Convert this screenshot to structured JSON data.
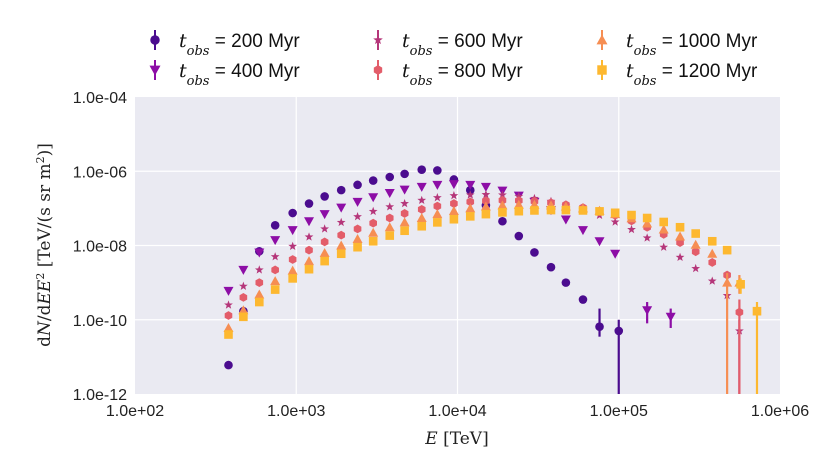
{
  "chart_data": {
    "type": "scatter",
    "title": "",
    "xlabel": "E [TeV]",
    "ylabel": "dN/dEE² [TeV/(s sr m²)]",
    "xscale": "log",
    "yscale": "log",
    "xlim": [
      100,
      1000000
    ],
    "ylim": [
      1e-12,
      0.0001
    ],
    "x_ticks": [
      100,
      1000,
      10000,
      100000,
      1000000
    ],
    "x_tick_labels": [
      "1.0e+02",
      "1.0e+03",
      "1.0e+04",
      "1.0e+05",
      "1.0e+06"
    ],
    "y_ticks": [
      1e-12,
      1e-10,
      1e-08,
      1e-06,
      0.0001
    ],
    "y_tick_labels": [
      "1.0e-12",
      "1.0e-10",
      "1.0e-08",
      "1.0e-06",
      "1.0e-04"
    ],
    "grid": true,
    "legend_position": "top",
    "series": [
      {
        "name": "t_obs = 200 Myr",
        "legend_label": "200 Myr",
        "marker": "circle",
        "color": "#4b0c8f",
        "points": [
          {
            "x": 380,
            "y": 6e-12
          },
          {
            "x": 470,
            "y": 1.7e-10
          },
          {
            "x": 590,
            "y": 7e-09
          },
          {
            "x": 740,
            "y": 3.5e-08
          },
          {
            "x": 950,
            "y": 7.5e-08
          },
          {
            "x": 1200,
            "y": 1.35e-07
          },
          {
            "x": 1500,
            "y": 2.1e-07
          },
          {
            "x": 1900,
            "y": 3.1e-07
          },
          {
            "x": 2400,
            "y": 4.3e-07
          },
          {
            "x": 3000,
            "y": 5.6e-07
          },
          {
            "x": 3800,
            "y": 7e-07
          },
          {
            "x": 4700,
            "y": 8.5e-07
          },
          {
            "x": 6000,
            "y": 1.1e-06
          },
          {
            "x": 7500,
            "y": 1.05e-06
          },
          {
            "x": 9500,
            "y": 6e-07
          },
          {
            "x": 12000,
            "y": 3.1e-07
          },
          {
            "x": 15000,
            "y": 1.2e-07
          },
          {
            "x": 19000,
            "y": 4.5e-08
          },
          {
            "x": 24000,
            "y": 1.8e-08
          },
          {
            "x": 30000,
            "y": 6.5e-09
          },
          {
            "x": 38000,
            "y": 2.6e-09
          },
          {
            "x": 47000,
            "y": 1e-09
          },
          {
            "x": 60000,
            "y": 3.5e-10
          },
          {
            "x": 76000,
            "y": 6.5e-11,
            "yerr_low": 3.5e-11,
            "yerr_high": 2e-10
          },
          {
            "x": 100000,
            "y": 5e-11,
            "yerr_low": 1e-12,
            "yerr_high": 1e-10
          }
        ]
      },
      {
        "name": "t_obs = 400 Myr",
        "legend_label": "400 Myr",
        "marker": "triangle-down",
        "color": "#8d0ea6",
        "points": [
          {
            "x": 380,
            "y": 6e-10
          },
          {
            "x": 470,
            "y": 2.2e-09
          },
          {
            "x": 590,
            "y": 6.5e-09
          },
          {
            "x": 740,
            "y": 1.4e-08
          },
          {
            "x": 950,
            "y": 2.6e-08
          },
          {
            "x": 1200,
            "y": 4.5e-08
          },
          {
            "x": 1500,
            "y": 7e-08
          },
          {
            "x": 1900,
            "y": 1.05e-07
          },
          {
            "x": 2400,
            "y": 1.5e-07
          },
          {
            "x": 3000,
            "y": 2e-07
          },
          {
            "x": 3800,
            "y": 2.6e-07
          },
          {
            "x": 4700,
            "y": 3.2e-07
          },
          {
            "x": 6000,
            "y": 3.8e-07
          },
          {
            "x": 7500,
            "y": 4.3e-07
          },
          {
            "x": 9500,
            "y": 4.5e-07
          },
          {
            "x": 12000,
            "y": 4.3e-07
          },
          {
            "x": 15000,
            "y": 3.8e-07
          },
          {
            "x": 19000,
            "y": 3e-07
          },
          {
            "x": 24000,
            "y": 2.2e-07
          },
          {
            "x": 30000,
            "y": 1.5e-07
          },
          {
            "x": 38000,
            "y": 9e-08
          },
          {
            "x": 47000,
            "y": 5e-08
          },
          {
            "x": 60000,
            "y": 2.6e-08
          },
          {
            "x": 76000,
            "y": 1.3e-08
          },
          {
            "x": 95000,
            "y": 6e-09
          },
          {
            "x": 150000,
            "y": 1.8e-10,
            "yerr_low": 8e-11,
            "yerr_high": 3e-10
          },
          {
            "x": 210000,
            "y": 1.2e-10,
            "yerr_low": 6e-11,
            "yerr_high": 2e-10
          }
        ]
      },
      {
        "name": "t_obs = 600 Myr",
        "legend_label": "600 Myr",
        "marker": "star",
        "color": "#b5367a",
        "points": [
          {
            "x": 380,
            "y": 2.5e-10
          },
          {
            "x": 470,
            "y": 8e-10
          },
          {
            "x": 590,
            "y": 2.2e-09
          },
          {
            "x": 740,
            "y": 5e-09
          },
          {
            "x": 950,
            "y": 9.5e-09
          },
          {
            "x": 1200,
            "y": 1.7e-08
          },
          {
            "x": 1500,
            "y": 2.8e-08
          },
          {
            "x": 1900,
            "y": 4.2e-08
          },
          {
            "x": 2400,
            "y": 6e-08
          },
          {
            "x": 3000,
            "y": 8.3e-08
          },
          {
            "x": 3800,
            "y": 1.1e-07
          },
          {
            "x": 4700,
            "y": 1.35e-07
          },
          {
            "x": 6000,
            "y": 1.65e-07
          },
          {
            "x": 7500,
            "y": 1.95e-07
          },
          {
            "x": 9500,
            "y": 2.2e-07
          },
          {
            "x": 12000,
            "y": 2.3e-07
          },
          {
            "x": 15000,
            "y": 2.35e-07
          },
          {
            "x": 19000,
            "y": 2.3e-07
          },
          {
            "x": 24000,
            "y": 2.1e-07
          },
          {
            "x": 30000,
            "y": 1.85e-07
          },
          {
            "x": 38000,
            "y": 1.55e-07
          },
          {
            "x": 47000,
            "y": 1.2e-07
          },
          {
            "x": 60000,
            "y": 9e-08
          },
          {
            "x": 76000,
            "y": 6.5e-08
          },
          {
            "x": 95000,
            "y": 4.3e-08
          },
          {
            "x": 120000,
            "y": 2.7e-08
          },
          {
            "x": 150000,
            "y": 1.6e-08
          },
          {
            "x": 190000,
            "y": 9e-09
          },
          {
            "x": 240000,
            "y": 4.8e-09
          },
          {
            "x": 300000,
            "y": 2.4e-09
          },
          {
            "x": 380000,
            "y": 1.1e-09
          },
          {
            "x": 470000,
            "y": 4.5e-10
          },
          {
            "x": 560000,
            "y": 5e-11,
            "yerr_low": 1e-12,
            "yerr_high": 1e-10
          }
        ]
      },
      {
        "name": "t_obs = 800 Myr",
        "legend_label": "800 Myr",
        "marker": "hexagon",
        "color": "#e35d6a",
        "points": [
          {
            "x": 380,
            "y": 1.3e-10
          },
          {
            "x": 470,
            "y": 4e-10
          },
          {
            "x": 590,
            "y": 1e-09
          },
          {
            "x": 740,
            "y": 2.2e-09
          },
          {
            "x": 950,
            "y": 4.2e-09
          },
          {
            "x": 1200,
            "y": 7.5e-09
          },
          {
            "x": 1500,
            "y": 1.25e-08
          },
          {
            "x": 1900,
            "y": 1.9e-08
          },
          {
            "x": 2400,
            "y": 2.8e-08
          },
          {
            "x": 3000,
            "y": 4e-08
          },
          {
            "x": 3800,
            "y": 5.5e-08
          },
          {
            "x": 4700,
            "y": 7.3e-08
          },
          {
            "x": 6000,
            "y": 9.4e-08
          },
          {
            "x": 7500,
            "y": 1.15e-07
          },
          {
            "x": 9500,
            "y": 1.35e-07
          },
          {
            "x": 12000,
            "y": 1.5e-07
          },
          {
            "x": 15000,
            "y": 1.6e-07
          },
          {
            "x": 19000,
            "y": 1.65e-07
          },
          {
            "x": 24000,
            "y": 1.62e-07
          },
          {
            "x": 30000,
            "y": 1.55e-07
          },
          {
            "x": 38000,
            "y": 1.42e-07
          },
          {
            "x": 47000,
            "y": 1.25e-07
          },
          {
            "x": 60000,
            "y": 1.05e-07
          },
          {
            "x": 76000,
            "y": 8.5e-08
          },
          {
            "x": 95000,
            "y": 6.5e-08
          },
          {
            "x": 120000,
            "y": 4.6e-08
          },
          {
            "x": 150000,
            "y": 3.1e-08
          },
          {
            "x": 190000,
            "y": 2e-08
          },
          {
            "x": 240000,
            "y": 1.2e-08
          },
          {
            "x": 300000,
            "y": 6.8e-09
          },
          {
            "x": 380000,
            "y": 3.5e-09
          },
          {
            "x": 470000,
            "y": 1.6e-09
          },
          {
            "x": 560000,
            "y": 1.6e-10,
            "yerr_low": 1e-12,
            "yerr_high": 3.5e-10
          }
        ]
      },
      {
        "name": "t_obs = 1000 Myr",
        "legend_label": "1000 Myr",
        "marker": "triangle-up",
        "color": "#f68e53",
        "points": [
          {
            "x": 380,
            "y": 6e-11
          },
          {
            "x": 470,
            "y": 1.8e-10
          },
          {
            "x": 590,
            "y": 4.8e-10
          },
          {
            "x": 740,
            "y": 1.1e-09
          },
          {
            "x": 950,
            "y": 2.1e-09
          },
          {
            "x": 1200,
            "y": 3.8e-09
          },
          {
            "x": 1500,
            "y": 6.3e-09
          },
          {
            "x": 1900,
            "y": 1e-08
          },
          {
            "x": 2400,
            "y": 1.5e-08
          },
          {
            "x": 3000,
            "y": 2.2e-08
          },
          {
            "x": 3800,
            "y": 3.1e-08
          },
          {
            "x": 4700,
            "y": 4.2e-08
          },
          {
            "x": 6000,
            "y": 5.5e-08
          },
          {
            "x": 7500,
            "y": 7e-08
          },
          {
            "x": 9500,
            "y": 8.5e-08
          },
          {
            "x": 12000,
            "y": 1e-07
          },
          {
            "x": 15000,
            "y": 1.12e-07
          },
          {
            "x": 19000,
            "y": 1.2e-07
          },
          {
            "x": 24000,
            "y": 1.25e-07
          },
          {
            "x": 30000,
            "y": 1.25e-07
          },
          {
            "x": 38000,
            "y": 1.2e-07
          },
          {
            "x": 47000,
            "y": 1.12e-07
          },
          {
            "x": 60000,
            "y": 1e-07
          },
          {
            "x": 76000,
            "y": 8.6e-08
          },
          {
            "x": 95000,
            "y": 7e-08
          },
          {
            "x": 120000,
            "y": 5.4e-08
          },
          {
            "x": 150000,
            "y": 3.9e-08
          },
          {
            "x": 190000,
            "y": 2.7e-08
          },
          {
            "x": 240000,
            "y": 1.75e-08
          },
          {
            "x": 300000,
            "y": 1.05e-08
          },
          {
            "x": 380000,
            "y": 6e-09
          },
          {
            "x": 470000,
            "y": 1e-09,
            "yerr_low": 1e-12,
            "yerr_high": 1.8e-09
          },
          {
            "x": 560000,
            "y": 1e-09,
            "yerr_low": 5e-10,
            "yerr_high": 1.6e-09
          }
        ]
      },
      {
        "name": "t_obs = 1200 Myr",
        "legend_label": "1200 Myr",
        "marker": "square",
        "color": "#fdb830",
        "points": [
          {
            "x": 380,
            "y": 4e-11
          },
          {
            "x": 470,
            "y": 1.2e-10
          },
          {
            "x": 590,
            "y": 3e-10
          },
          {
            "x": 740,
            "y": 6.5e-10
          },
          {
            "x": 950,
            "y": 1.3e-09
          },
          {
            "x": 1200,
            "y": 2.3e-09
          },
          {
            "x": 1500,
            "y": 3.8e-09
          },
          {
            "x": 1900,
            "y": 6e-09
          },
          {
            "x": 2400,
            "y": 9e-09
          },
          {
            "x": 3000,
            "y": 1.3e-08
          },
          {
            "x": 3800,
            "y": 1.85e-08
          },
          {
            "x": 4700,
            "y": 2.5e-08
          },
          {
            "x": 6000,
            "y": 3.3e-08
          },
          {
            "x": 7500,
            "y": 4.2e-08
          },
          {
            "x": 9500,
            "y": 5.1e-08
          },
          {
            "x": 12000,
            "y": 6.1e-08
          },
          {
            "x": 15000,
            "y": 7e-08
          },
          {
            "x": 19000,
            "y": 7.8e-08
          },
          {
            "x": 24000,
            "y": 8.4e-08
          },
          {
            "x": 30000,
            "y": 8.8e-08
          },
          {
            "x": 38000,
            "y": 9e-08
          },
          {
            "x": 47000,
            "y": 9e-08
          },
          {
            "x": 60000,
            "y": 8.8e-08
          },
          {
            "x": 76000,
            "y": 8.3e-08
          },
          {
            "x": 95000,
            "y": 7.6e-08
          },
          {
            "x": 120000,
            "y": 6.6e-08
          },
          {
            "x": 150000,
            "y": 5.5e-08
          },
          {
            "x": 190000,
            "y": 4.3e-08
          },
          {
            "x": 240000,
            "y": 3.1e-08
          },
          {
            "x": 300000,
            "y": 2.1e-08
          },
          {
            "x": 380000,
            "y": 1.3e-08
          },
          {
            "x": 470000,
            "y": 7.5e-09
          },
          {
            "x": 570000,
            "y": 9e-10,
            "yerr_low": 5e-10,
            "yerr_high": 1.3e-09
          },
          {
            "x": 720000,
            "y": 1.7e-10,
            "yerr_low": 1e-12,
            "yerr_high": 3e-10
          }
        ]
      }
    ]
  }
}
